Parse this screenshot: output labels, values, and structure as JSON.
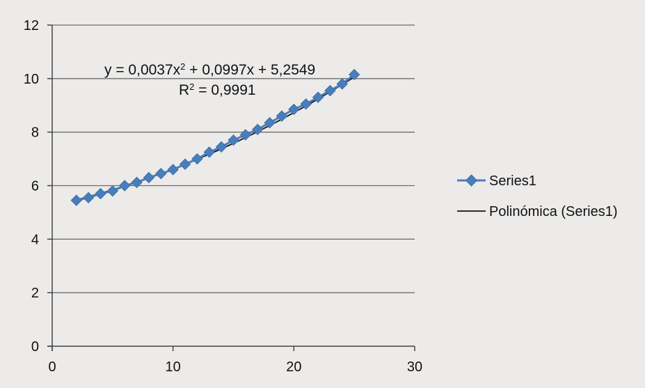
{
  "chart_data": {
    "type": "scatter",
    "title": "",
    "xlabel": "",
    "ylabel": "",
    "xlim": [
      0,
      30
    ],
    "ylim": [
      0,
      12
    ],
    "x_ticks": [
      0,
      10,
      20,
      30
    ],
    "y_ticks": [
      0,
      2,
      4,
      6,
      8,
      10,
      12
    ],
    "x_tick_labels": [
      "0",
      "10",
      "20",
      "30"
    ],
    "y_tick_labels": [
      "0",
      "2",
      "4",
      "6",
      "8",
      "10",
      "12"
    ],
    "grid": "horizontal major gridlines",
    "legend_position": "right",
    "series": [
      {
        "name": "Series1",
        "marker": "diamond",
        "color": "#4a7ebb",
        "x": [
          2,
          3,
          4,
          5,
          6,
          7,
          8,
          9,
          10,
          11,
          12,
          13,
          14,
          15,
          16,
          17,
          18,
          19,
          20,
          21,
          22,
          23,
          24,
          25
        ],
        "y": [
          5.45,
          5.55,
          5.7,
          5.8,
          6.0,
          6.12,
          6.3,
          6.45,
          6.6,
          6.8,
          7.0,
          7.25,
          7.45,
          7.7,
          7.9,
          8.1,
          8.35,
          8.6,
          8.85,
          9.05,
          9.3,
          9.55,
          9.8,
          10.15
        ]
      }
    ],
    "trendline": {
      "name": "Polinómica (Series1)",
      "type": "polynomial",
      "color": "#111111",
      "coefficients": {
        "a": 0.0037,
        "b": 0.0997,
        "c": 5.2549
      },
      "x_range": [
        2,
        25
      ],
      "equation_label_parts": [
        "y = 0,0037x",
        "2",
        " + 0,0997x + 5,2549"
      ],
      "r2_label_parts": [
        "R",
        "2",
        " = 0,9991"
      ]
    }
  }
}
